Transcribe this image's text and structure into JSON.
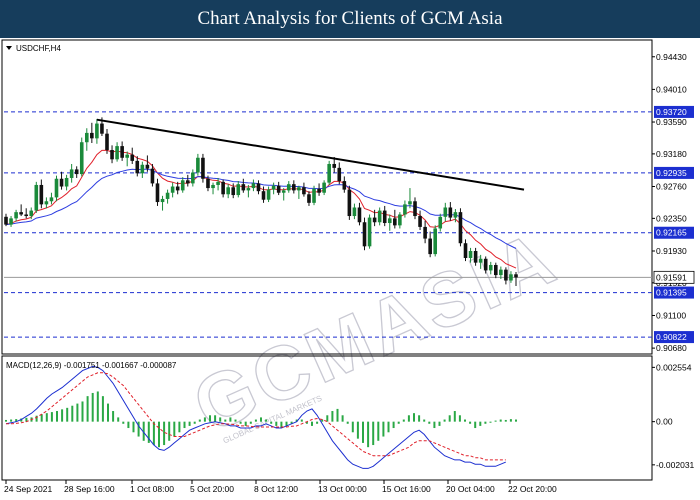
{
  "banner": {
    "title": "Chart Analysis for Clients of GCM Asia"
  },
  "chart_data": {
    "type": "candlestick",
    "symbol_label": "USDCHF,H4",
    "price_axis": [
      "0.94430",
      "0.94010",
      "0.93590",
      "0.93180",
      "0.92760",
      "0.92350",
      "0.91930",
      "0.91520",
      "0.91100",
      "0.90680"
    ],
    "price_range": [
      0.9063,
      0.9462
    ],
    "level_markers": [
      {
        "label": "0.93720",
        "value": 0.9372,
        "color": "#1c2fd0"
      },
      {
        "label": "0.92935",
        "value": 0.92935,
        "color": "#1c2fd0"
      },
      {
        "label": "0.92165",
        "value": 0.92165,
        "color": "#1c2fd0"
      },
      {
        "label": "0.91395",
        "value": 0.91395,
        "color": "#1c2fd0"
      },
      {
        "label": "0.90822",
        "value": 0.90822,
        "color": "#1c2fd0"
      }
    ],
    "current_price": {
      "label": "0.91591",
      "value": 0.91591
    },
    "trendline": {
      "from_value": 0.9362,
      "to_value": 0.9272
    },
    "candles": [
      [
        0.9237,
        0.9241,
        0.9225,
        0.9227
      ],
      [
        0.9227,
        0.9238,
        0.9224,
        0.9235
      ],
      [
        0.9235,
        0.9246,
        0.9231,
        0.9243
      ],
      [
        0.9243,
        0.9253,
        0.9238,
        0.924
      ],
      [
        0.924,
        0.9248,
        0.9235,
        0.9238
      ],
      [
        0.9238,
        0.9249,
        0.9234,
        0.9245
      ],
      [
        0.9245,
        0.9282,
        0.9242,
        0.9278
      ],
      [
        0.9278,
        0.9285,
        0.9248,
        0.9253
      ],
      [
        0.9253,
        0.9262,
        0.9248,
        0.9257
      ],
      [
        0.9257,
        0.9268,
        0.9253,
        0.9262
      ],
      [
        0.9262,
        0.929,
        0.9257,
        0.9286
      ],
      [
        0.9286,
        0.9295,
        0.9272,
        0.9276
      ],
      [
        0.9276,
        0.9291,
        0.9271,
        0.9287
      ],
      [
        0.9287,
        0.9305,
        0.9281,
        0.9298
      ],
      [
        0.9298,
        0.9302,
        0.9287,
        0.9292
      ],
      [
        0.9292,
        0.9339,
        0.9289,
        0.9333
      ],
      [
        0.9333,
        0.9351,
        0.9322,
        0.9345
      ],
      [
        0.9345,
        0.9358,
        0.9332,
        0.9338
      ],
      [
        0.9338,
        0.9363,
        0.9331,
        0.9357
      ],
      [
        0.9357,
        0.9365,
        0.9341,
        0.9344
      ],
      [
        0.9344,
        0.935,
        0.9318,
        0.9323
      ],
      [
        0.9323,
        0.9329,
        0.9306,
        0.9311
      ],
      [
        0.9311,
        0.9333,
        0.9308,
        0.9328
      ],
      [
        0.9328,
        0.9334,
        0.9309,
        0.9313
      ],
      [
        0.9313,
        0.9321,
        0.9302,
        0.9317
      ],
      [
        0.9317,
        0.9326,
        0.9305,
        0.9309
      ],
      [
        0.9309,
        0.9315,
        0.9289,
        0.9293
      ],
      [
        0.9293,
        0.9308,
        0.9287,
        0.9304
      ],
      [
        0.9304,
        0.9316,
        0.9295,
        0.9299
      ],
      [
        0.9299,
        0.9305,
        0.9276,
        0.928
      ],
      [
        0.928,
        0.9286,
        0.9251,
        0.9256
      ],
      [
        0.9256,
        0.9264,
        0.9245,
        0.926
      ],
      [
        0.926,
        0.9272,
        0.9254,
        0.9268
      ],
      [
        0.9268,
        0.9281,
        0.9262,
        0.9276
      ],
      [
        0.9276,
        0.9282,
        0.9266,
        0.9271
      ],
      [
        0.9271,
        0.9288,
        0.9268,
        0.9284
      ],
      [
        0.9284,
        0.9291,
        0.9276,
        0.928
      ],
      [
        0.928,
        0.9298,
        0.9276,
        0.9294
      ],
      [
        0.9294,
        0.9318,
        0.929,
        0.9313
      ],
      [
        0.9313,
        0.9318,
        0.9281,
        0.9286
      ],
      [
        0.9286,
        0.929,
        0.927,
        0.9274
      ],
      [
        0.9274,
        0.9281,
        0.9266,
        0.9278
      ],
      [
        0.9278,
        0.9287,
        0.9271,
        0.9282
      ],
      [
        0.9282,
        0.9285,
        0.9262,
        0.9266
      ],
      [
        0.9266,
        0.9279,
        0.9261,
        0.9275
      ],
      [
        0.9275,
        0.928,
        0.9261,
        0.9265
      ],
      [
        0.9265,
        0.9283,
        0.9262,
        0.9279
      ],
      [
        0.9279,
        0.9286,
        0.9268,
        0.9271
      ],
      [
        0.9271,
        0.9278,
        0.9262,
        0.9274
      ],
      [
        0.9274,
        0.9285,
        0.927,
        0.928
      ],
      [
        0.928,
        0.9284,
        0.9266,
        0.927
      ],
      [
        0.927,
        0.9276,
        0.9255,
        0.9259
      ],
      [
        0.9259,
        0.9276,
        0.9256,
        0.9272
      ],
      [
        0.9272,
        0.9281,
        0.9266,
        0.9277
      ],
      [
        0.9277,
        0.9282,
        0.9265,
        0.9268
      ],
      [
        0.9268,
        0.9274,
        0.9258,
        0.9271
      ],
      [
        0.9271,
        0.9283,
        0.9268,
        0.9279
      ],
      [
        0.9279,
        0.9284,
        0.9267,
        0.9271
      ],
      [
        0.9271,
        0.9277,
        0.926,
        0.9275
      ],
      [
        0.9275,
        0.9281,
        0.9263,
        0.9266
      ],
      [
        0.9266,
        0.927,
        0.9251,
        0.9255
      ],
      [
        0.9255,
        0.9277,
        0.9252,
        0.9273
      ],
      [
        0.9273,
        0.928,
        0.9264,
        0.9268
      ],
      [
        0.9268,
        0.9284,
        0.9265,
        0.9281
      ],
      [
        0.9281,
        0.9309,
        0.9278,
        0.9305
      ],
      [
        0.9305,
        0.9314,
        0.9294,
        0.93
      ],
      [
        0.93,
        0.9307,
        0.9279,
        0.9283
      ],
      [
        0.9283,
        0.9289,
        0.9268,
        0.9272
      ],
      [
        0.9272,
        0.9277,
        0.9233,
        0.9238
      ],
      [
        0.9238,
        0.9254,
        0.9234,
        0.9249
      ],
      [
        0.9249,
        0.9255,
        0.9226,
        0.923
      ],
      [
        0.923,
        0.9236,
        0.9194,
        0.9199
      ],
      [
        0.9199,
        0.924,
        0.9196,
        0.9236
      ],
      [
        0.9236,
        0.9246,
        0.9225,
        0.923
      ],
      [
        0.923,
        0.9249,
        0.9226,
        0.9245
      ],
      [
        0.9245,
        0.9251,
        0.9225,
        0.9229
      ],
      [
        0.9229,
        0.924,
        0.9219,
        0.9235
      ],
      [
        0.9235,
        0.9246,
        0.9222,
        0.9226
      ],
      [
        0.9226,
        0.9243,
        0.9222,
        0.924
      ],
      [
        0.924,
        0.9258,
        0.9236,
        0.9253
      ],
      [
        0.9253,
        0.9274,
        0.9248,
        0.9257
      ],
      [
        0.9257,
        0.9262,
        0.9234,
        0.9238
      ],
      [
        0.9238,
        0.9245,
        0.922,
        0.9224
      ],
      [
        0.9224,
        0.9232,
        0.9203,
        0.9209
      ],
      [
        0.9209,
        0.9218,
        0.9185,
        0.9189
      ],
      [
        0.9189,
        0.9226,
        0.9186,
        0.9222
      ],
      [
        0.9222,
        0.9241,
        0.9218,
        0.9237
      ],
      [
        0.9237,
        0.9255,
        0.9231,
        0.9249
      ],
      [
        0.9249,
        0.9256,
        0.9232,
        0.9236
      ],
      [
        0.9236,
        0.9247,
        0.923,
        0.9243
      ],
      [
        0.9243,
        0.9248,
        0.9199,
        0.9203
      ],
      [
        0.9203,
        0.9208,
        0.918,
        0.9184
      ],
      [
        0.9184,
        0.9197,
        0.9178,
        0.9193
      ],
      [
        0.9193,
        0.9197,
        0.9174,
        0.9178
      ],
      [
        0.9178,
        0.9188,
        0.917,
        0.9183
      ],
      [
        0.9183,
        0.9186,
        0.9164,
        0.9168
      ],
      [
        0.9168,
        0.9179,
        0.9163,
        0.9175
      ],
      [
        0.9175,
        0.9178,
        0.9158,
        0.9162
      ],
      [
        0.9162,
        0.9173,
        0.9157,
        0.9169
      ],
      [
        0.9169,
        0.9172,
        0.915,
        0.9155
      ],
      [
        0.9155,
        0.9167,
        0.9152,
        0.9163
      ],
      [
        0.9163,
        0.9166,
        0.9148,
        0.9159
      ]
    ],
    "macd": {
      "label": "MACD(12,26,9) -0.001751 -0.001667 -0.000087",
      "axis": [
        "0.002554",
        "0.00",
        "-0.002031"
      ],
      "range": [
        -0.00265,
        0.0029
      ],
      "histogram": [
        8e-05,
        0.0001,
        0.00012,
        0.00015,
        0.00018,
        0.0002,
        0.00028,
        0.00035,
        0.0004,
        0.00045,
        0.0005,
        0.00058,
        0.00065,
        0.00075,
        0.00085,
        0.00095,
        0.0012,
        0.00135,
        0.00142,
        0.0012,
        0.00085,
        0.0005,
        0.0002,
        -0.0001,
        -0.0003,
        -0.0005,
        -0.0007,
        -0.0009,
        -0.001,
        -0.0011,
        -0.0012,
        -0.0011,
        -0.0009,
        -0.0007,
        -0.0005,
        -0.0003,
        -0.0002,
        -0.0001,
        0.0001,
        0.0002,
        0.0003,
        0.0003,
        0.0002,
        0.0001,
        0.0002,
        0.0001,
        -0.0001,
        -0.0002,
        -0.0001,
        0.0001,
        0.0002,
        0.0001,
        -0.0001,
        -0.0002,
        -0.0003,
        -0.0002,
        -0.0001,
        0.0001,
        0.0001,
        -0.0001,
        -0.0002,
        -0.0001,
        0.0001,
        0.0003,
        0.0005,
        0.0006,
        0.0003,
        -0.0001,
        -0.0005,
        -0.0008,
        -0.001,
        -0.0012,
        -0.0011,
        -0.0009,
        -0.0007,
        -0.0005,
        -0.0003,
        -0.0001,
        0.0001,
        0.0003,
        0.0004,
        0.0003,
        0.0001,
        -0.0001,
        -0.0003,
        -0.0002,
        0.0001,
        0.0003,
        0.0005,
        0.0003,
        0.0001,
        -0.0001,
        -0.0003,
        -0.0002,
        -0.0001,
        -5e-05,
        5e-05,
        0.0001,
        8e-05,
        0.00012,
        0.0001
      ],
      "main": [
        -0.0001,
        -5e-05,
        0.0,
        0.0001,
        0.00025,
        0.0004,
        0.0006,
        0.00085,
        0.0011,
        0.0013,
        0.00145,
        0.0016,
        0.0018,
        0.002,
        0.0022,
        0.0024,
        0.0025,
        0.0026,
        0.00255,
        0.0024,
        0.0021,
        0.0018,
        0.0014,
        0.001,
        0.0006,
        0.0002,
        -0.0002,
        -0.0005,
        -0.0008,
        -0.0011,
        -0.0013,
        -0.00135,
        -0.0012,
        -0.001,
        -0.0008,
        -0.0006,
        -0.0004,
        -0.0003,
        -0.0002,
        -0.0001,
        -5e-05,
        0.0,
        -5e-05,
        -0.0001,
        -0.0002,
        -0.0002,
        -0.0003,
        -0.0003,
        -0.0003,
        -0.0002,
        -0.0002,
        -0.0001,
        -0.0002,
        -0.0003,
        -0.0003,
        -0.0002,
        -0.0001,
        0.0,
        0.0003,
        0.0005,
        0.0006,
        0.0003,
        -0.0001,
        -0.0005,
        -0.0009,
        -0.0012,
        -0.0015,
        -0.0018,
        -0.002,
        -0.0021,
        -0.0022,
        -0.0022,
        -0.0021,
        -0.0019,
        -0.0017,
        -0.0015,
        -0.0013,
        -0.0011,
        -0.0009,
        -0.0007,
        -0.0005,
        -0.0004,
        -0.0006,
        -0.0009,
        -0.0012,
        -0.0014,
        -0.0016,
        -0.0017,
        -0.0018,
        -0.0018,
        -0.0019,
        -0.0019,
        -0.002,
        -0.002,
        -0.0021,
        -0.0021,
        -0.0021,
        -0.002,
        -0.0019
      ],
      "signal": [
        -0.0001,
        -0.0001,
        -8e-05,
        -5e-05,
        0.0,
        0.0001,
        0.0002,
        0.00035,
        0.0005,
        0.0007,
        0.0009,
        0.0011,
        0.0013,
        0.0015,
        0.0017,
        0.0019,
        0.0021,
        0.0022,
        0.0023,
        0.0023,
        0.00225,
        0.0021,
        0.0019,
        0.0017,
        0.0014,
        0.0011,
        0.0008,
        0.0005,
        0.0002,
        -0.0001,
        -0.0003,
        -0.0005,
        -0.0006,
        -0.0007,
        -0.0007,
        -0.0007,
        -0.0006,
        -0.0005,
        -0.0004,
        -0.0003,
        -0.0002,
        -0.00015,
        -0.0001,
        -0.0001,
        -0.00012,
        -0.00015,
        -0.0002,
        -0.0002,
        -0.00022,
        -0.00025,
        -0.00025,
        -0.00025,
        -0.00025,
        -0.00025,
        -0.00025,
        -0.00025,
        -0.00022,
        -0.0002,
        -0.0001,
        0.0,
        0.0001,
        0.00015,
        0.0001,
        0.0,
        -0.0002,
        -0.0004,
        -0.0006,
        -0.0008,
        -0.001,
        -0.0012,
        -0.0014,
        -0.0015,
        -0.0016,
        -0.0016,
        -0.0016,
        -0.0016,
        -0.0015,
        -0.0014,
        -0.0013,
        -0.0012,
        -0.001,
        -0.0009,
        -0.0009,
        -0.0009,
        -0.001,
        -0.0011,
        -0.0012,
        -0.0013,
        -0.0014,
        -0.0015,
        -0.0016,
        -0.0016,
        -0.0017,
        -0.0017,
        -0.0018,
        -0.0018,
        -0.0018,
        -0.0018,
        -0.0018
      ]
    },
    "time_axis": [
      "24 Sep 2021",
      "28 Sep 16:00",
      "1 Oct 08:00",
      "5 Oct 20:00",
      "8 Oct 12:00",
      "13 Oct 00:00",
      "15 Oct 16:00",
      "20 Oct 04:00",
      "22 Oct 20:00"
    ],
    "colors": {
      "bull": "#1a8a3a",
      "bear": "#111111",
      "ma_fast": "#e0202a",
      "ma_slow": "#2d3de0",
      "level": "#1c2fd0",
      "macd_hist": "#2aa845",
      "macd_main": "#1c2fd0",
      "macd_signal": "#e0202a",
      "trend": "#000000"
    }
  },
  "watermark": {
    "text": "GCMASIA",
    "sub": "GLOBAL CAPITAL MARKETS"
  }
}
